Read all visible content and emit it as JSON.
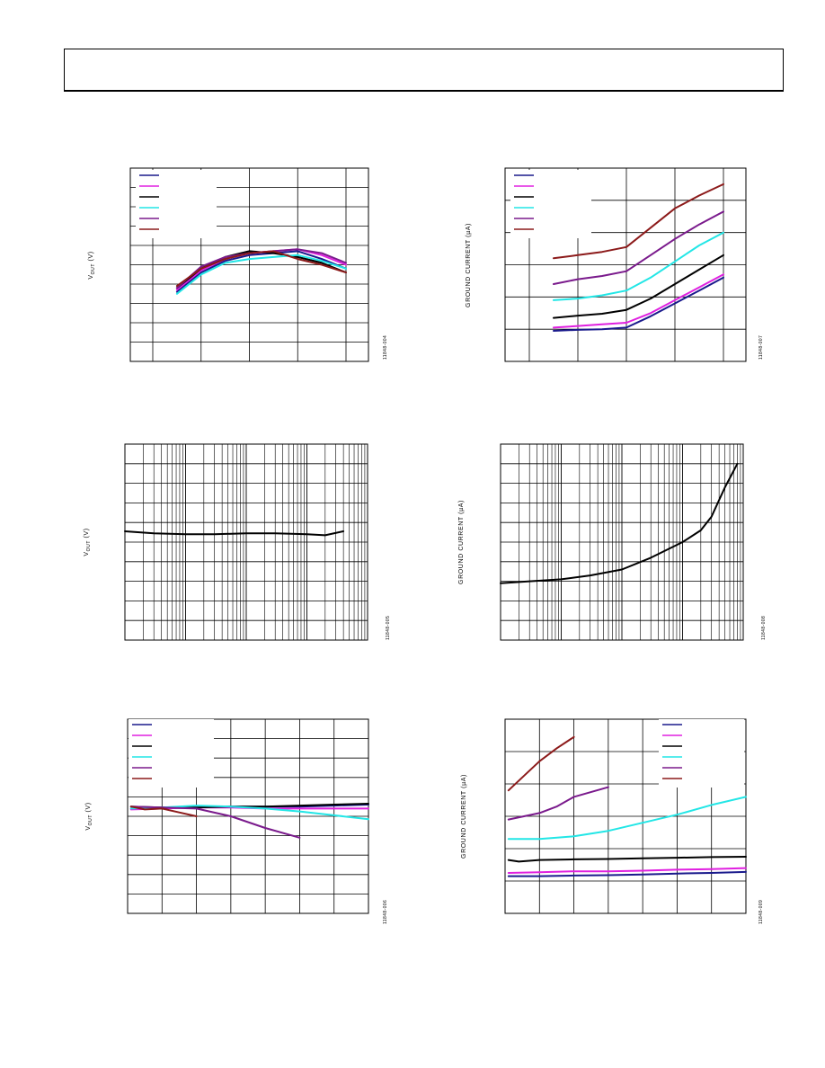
{
  "page": {
    "header": ""
  },
  "charts": [
    {
      "id": "c1",
      "fig_id": "11848-004",
      "ylabel_main": "V",
      "ylabel_sub": "OUT",
      "ylabel_unit": " (V)"
    },
    {
      "id": "c2",
      "fig_id": "11848-007",
      "ylabel_main": "GROUND CURRENT (",
      "ylabel_sub": "",
      "ylabel_unit": "µA)"
    },
    {
      "id": "c3",
      "fig_id": "11848-005",
      "ylabel_main": "V",
      "ylabel_sub": "OUT",
      "ylabel_unit": " (V)"
    },
    {
      "id": "c4",
      "fig_id": "11848-008",
      "ylabel_main": "GROUND CURRENT (",
      "ylabel_sub": "",
      "ylabel_unit": "µA)"
    },
    {
      "id": "c5",
      "fig_id": "11848-006",
      "ylabel_main": "V",
      "ylabel_sub": "OUT",
      "ylabel_unit": " (V)"
    },
    {
      "id": "c6",
      "fig_id": "11848-009",
      "ylabel_main": "GROUND CURRENT (",
      "ylabel_sub": "",
      "ylabel_unit": "µA)"
    }
  ],
  "chart_data": [
    {
      "id": "c1",
      "type": "line",
      "xscale": "linear",
      "xlim": [
        0,
        8
      ],
      "ylim": [
        0,
        10
      ],
      "grid": true,
      "legend": "top-left",
      "xticks": [
        0,
        2,
        4,
        6,
        8
      ],
      "yticks": [
        0,
        1,
        2,
        3,
        4,
        5,
        6,
        7,
        8,
        9,
        10
      ],
      "series": [
        {
          "color": "#1a1a8c",
          "x": [
            1.0,
            2.0,
            3.0,
            4.0,
            5.0,
            6.0,
            7.0,
            8.0
          ],
          "y": [
            3.6,
            4.6,
            5.2,
            5.5,
            5.6,
            5.7,
            5.3,
            4.8
          ]
        },
        {
          "color": "#e020e0",
          "x": [
            1.0,
            2.0,
            3.0,
            4.0,
            5.0,
            6.0,
            7.0,
            8.0
          ],
          "y": [
            3.7,
            4.7,
            5.3,
            5.6,
            5.7,
            5.8,
            5.5,
            5.0
          ]
        },
        {
          "color": "#000000",
          "x": [
            1.0,
            2.0,
            3.0,
            4.0,
            5.0,
            6.0,
            7.0,
            8.0
          ],
          "y": [
            3.8,
            4.8,
            5.4,
            5.7,
            5.6,
            5.4,
            5.1,
            4.6
          ]
        },
        {
          "color": "#22e6e6",
          "x": [
            1.0,
            2.0,
            3.0,
            4.0,
            5.0,
            6.0,
            7.0,
            8.0
          ],
          "y": [
            3.5,
            4.5,
            5.1,
            5.3,
            5.4,
            5.5,
            5.2,
            4.8
          ]
        },
        {
          "color": "#7a1a8c",
          "x": [
            1.0,
            2.0,
            3.0,
            4.0,
            5.0,
            6.0,
            7.0,
            8.0
          ],
          "y": [
            3.8,
            4.9,
            5.4,
            5.6,
            5.7,
            5.8,
            5.6,
            5.1
          ]
        },
        {
          "color": "#8c1a1a",
          "x": [
            1.0,
            2.0,
            3.0,
            4.0,
            5.0,
            6.0,
            7.0,
            8.0
          ],
          "y": [
            3.9,
            4.8,
            5.3,
            5.6,
            5.7,
            5.3,
            5.0,
            4.6
          ]
        }
      ]
    },
    {
      "id": "c2",
      "type": "line",
      "xscale": "linear",
      "xlim": [
        0,
        8
      ],
      "ylim": [
        0,
        6
      ],
      "grid": true,
      "legend": "top-left",
      "xticks": [
        0,
        2,
        4,
        6,
        8
      ],
      "yticks": [
        0,
        1,
        2,
        3,
        4,
        5,
        6
      ],
      "series": [
        {
          "color": "#1a1a8c",
          "x": [
            1,
            2,
            3,
            4,
            5,
            6,
            7,
            8
          ],
          "y": [
            0.95,
            0.98,
            1.0,
            1.05,
            1.4,
            1.8,
            2.2,
            2.6
          ]
        },
        {
          "color": "#e020e0",
          "x": [
            1,
            2,
            3,
            4,
            5,
            6,
            7,
            8
          ],
          "y": [
            1.05,
            1.1,
            1.15,
            1.2,
            1.5,
            1.9,
            2.3,
            2.7
          ]
        },
        {
          "color": "#000000",
          "x": [
            1,
            2,
            3,
            4,
            5,
            6,
            7,
            8
          ],
          "y": [
            1.35,
            1.42,
            1.48,
            1.6,
            1.95,
            2.4,
            2.85,
            3.3
          ]
        },
        {
          "color": "#22e6e6",
          "x": [
            1,
            2,
            3,
            4,
            5,
            6,
            7,
            8
          ],
          "y": [
            1.9,
            1.95,
            2.05,
            2.2,
            2.6,
            3.1,
            3.6,
            4.0
          ]
        },
        {
          "color": "#7a1a8c",
          "x": [
            1,
            2,
            3,
            4,
            5,
            6,
            7,
            8
          ],
          "y": [
            2.4,
            2.55,
            2.65,
            2.8,
            3.3,
            3.8,
            4.25,
            4.65
          ]
        },
        {
          "color": "#8c1a1a",
          "x": [
            1,
            2,
            3,
            4,
            5,
            6,
            7,
            8
          ],
          "y": [
            3.2,
            3.3,
            3.4,
            3.55,
            4.15,
            4.75,
            5.15,
            5.5
          ]
        }
      ]
    },
    {
      "id": "c3",
      "type": "line",
      "xscale": "log",
      "xlim": [
        1,
        10000
      ],
      "ylim": [
        0,
        10
      ],
      "grid": true,
      "xticks": [
        1,
        10,
        100,
        1000,
        10000
      ],
      "yticks": [
        0,
        1,
        2,
        3,
        4,
        5,
        6,
        7,
        8,
        9,
        10
      ],
      "series": [
        {
          "color": "#000000",
          "x": [
            1,
            3,
            10,
            30,
            100,
            300,
            1000,
            2000,
            4000
          ],
          "y": [
            5.55,
            5.45,
            5.4,
            5.4,
            5.45,
            5.45,
            5.4,
            5.35,
            5.55
          ]
        }
      ]
    },
    {
      "id": "c4",
      "type": "line",
      "xscale": "log",
      "xlim": [
        1,
        10000
      ],
      "ylim": [
        0,
        10
      ],
      "grid": true,
      "xticks": [
        1,
        10,
        100,
        1000,
        10000
      ],
      "yticks": [
        0,
        1,
        2,
        3,
        4,
        5,
        6,
        7,
        8,
        9,
        10
      ],
      "series": [
        {
          "color": "#000000",
          "x": [
            1,
            3,
            10,
            30,
            100,
            300,
            1000,
            2000,
            3000,
            5000,
            8000
          ],
          "y": [
            2.9,
            3.0,
            3.1,
            3.3,
            3.6,
            4.2,
            5.0,
            5.6,
            6.3,
            7.8,
            9.0
          ]
        }
      ]
    },
    {
      "id": "c5",
      "type": "line",
      "xscale": "linear",
      "xlim": [
        0,
        7
      ],
      "ylim": [
        0,
        10
      ],
      "grid": true,
      "legend": "top-left",
      "xticks": [
        0,
        1,
        2,
        3,
        4,
        5,
        6,
        7
      ],
      "yticks": [
        0,
        1,
        2,
        3,
        4,
        5,
        6,
        7,
        8,
        9,
        10
      ],
      "series": [
        {
          "color": "#1a1a8c",
          "x": [
            0.1,
            1,
            2,
            3,
            4,
            5,
            6,
            7
          ],
          "y": [
            5.4,
            5.45,
            5.5,
            5.5,
            5.5,
            5.5,
            5.55,
            5.6
          ]
        },
        {
          "color": "#e020e0",
          "x": [
            0.1,
            1,
            2,
            3,
            4,
            5,
            6,
            7
          ],
          "y": [
            5.35,
            5.4,
            5.45,
            5.45,
            5.4,
            5.4,
            5.4,
            5.4
          ]
        },
        {
          "color": "#000000",
          "x": [
            0.1,
            1,
            2,
            3,
            4,
            5,
            6,
            7
          ],
          "y": [
            5.5,
            5.45,
            5.45,
            5.5,
            5.5,
            5.55,
            5.6,
            5.65
          ]
        },
        {
          "color": "#22e6e6",
          "x": [
            0.1,
            1,
            2,
            3,
            4,
            5,
            6,
            7
          ],
          "y": [
            5.4,
            5.45,
            5.55,
            5.5,
            5.4,
            5.25,
            5.05,
            4.85
          ]
        },
        {
          "color": "#7a1a8c",
          "x": [
            0.1,
            1,
            2,
            3,
            4,
            5
          ],
          "y": [
            5.5,
            5.45,
            5.4,
            5.0,
            4.4,
            3.9
          ]
        },
        {
          "color": "#8c1a1a",
          "x": [
            0.1,
            0.5,
            1,
            1.5,
            2
          ],
          "y": [
            5.5,
            5.35,
            5.4,
            5.2,
            5.0
          ]
        }
      ]
    },
    {
      "id": "c6",
      "type": "line",
      "xscale": "linear",
      "xlim": [
        0,
        7
      ],
      "ylim": [
        0,
        6
      ],
      "grid": true,
      "legend": "top-right",
      "xticks": [
        0,
        1,
        2,
        3,
        4,
        5,
        6,
        7
      ],
      "yticks": [
        0,
        1,
        2,
        3,
        4,
        5,
        6
      ],
      "series": [
        {
          "color": "#1a1a8c",
          "x": [
            0.1,
            1,
            2,
            3,
            4,
            5,
            6,
            7
          ],
          "y": [
            1.15,
            1.15,
            1.17,
            1.18,
            1.2,
            1.23,
            1.25,
            1.28
          ]
        },
        {
          "color": "#e020e0",
          "x": [
            0.1,
            1,
            2,
            3,
            4,
            5,
            6,
            7
          ],
          "y": [
            1.25,
            1.27,
            1.3,
            1.3,
            1.32,
            1.35,
            1.37,
            1.4
          ]
        },
        {
          "color": "#000000",
          "x": [
            0.1,
            0.4,
            1,
            2,
            3,
            4,
            5,
            6,
            7
          ],
          "y": [
            1.65,
            1.6,
            1.65,
            1.67,
            1.68,
            1.7,
            1.72,
            1.74,
            1.75
          ]
        },
        {
          "color": "#22e6e6",
          "x": [
            0.1,
            1,
            2,
            3,
            4,
            5,
            6,
            7
          ],
          "y": [
            2.3,
            2.3,
            2.38,
            2.55,
            2.8,
            3.05,
            3.35,
            3.6
          ]
        },
        {
          "color": "#7a1a8c",
          "x": [
            0.1,
            1,
            1.5,
            2,
            3
          ],
          "y": [
            2.9,
            3.1,
            3.3,
            3.6,
            3.9
          ]
        },
        {
          "color": "#8c1a1a",
          "x": [
            0.1,
            0.5,
            1,
            1.5,
            2
          ],
          "y": [
            3.8,
            4.2,
            4.7,
            5.1,
            5.45
          ]
        }
      ]
    }
  ]
}
